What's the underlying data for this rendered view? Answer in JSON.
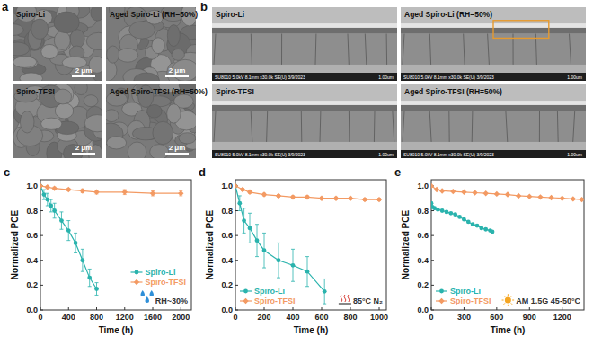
{
  "panel_a": {
    "label": "a",
    "images": [
      {
        "label": "Spiro-Li",
        "scale_bar": "2 μm"
      },
      {
        "label": "Aged Spiro-Li (RH=50%)",
        "scale_bar": "2 μm"
      },
      {
        "label": "Spiro-TFSI",
        "scale_bar": "2 μm"
      },
      {
        "label": "Aged Spiro-TFSI (RH=50%)",
        "scale_bar": "2 μm"
      }
    ]
  },
  "panel_b": {
    "label": "b",
    "images": [
      {
        "label": "Spiro-Li",
        "footer": "SU8010 5.0kV 8.1mm x30.0k SE(U) 3/9/2023",
        "scale": "1.00um",
        "highlight": false
      },
      {
        "label": "Aged Spiro-Li (RH=50%)",
        "footer": "SU8010 5.0kV 8.1mm x30.0k SE(U) 3/9/2023",
        "scale": "1.00um",
        "highlight": true
      },
      {
        "label": "Spiro-TFSI",
        "footer": "SU8010 5.0kV 8.1mm x30.0k SE(U) 3/9/2023",
        "scale": "1.00um",
        "highlight": false
      },
      {
        "label": "Aged Spiro-TFSI (RH=50%)",
        "footer": "SU8010 5.0kV 8.1mm x30.0k SE(U) 3/9/2023",
        "scale": "1.00um",
        "highlight": false
      }
    ]
  },
  "chart_data": [
    {
      "type": "line",
      "title": "c",
      "xlabel": "Time (h)",
      "ylabel": "Normalized PCE",
      "annotation": "RH~30%",
      "xlim": [
        0,
        2150
      ],
      "xticks": [
        0,
        400,
        800,
        1200,
        1600,
        2000
      ],
      "ylim": [
        0,
        1.05
      ],
      "yticks": [
        {
          "value": 0,
          "label": "0.0"
        },
        0.2,
        0.4,
        0.6,
        0.8,
        {
          "value": 1,
          "label": "1.0"
        }
      ],
      "grid": false,
      "legend": "lower right",
      "series": [
        {
          "name": "Spiro-Li",
          "color": "#2ab3ad",
          "marker": "circle",
          "line_style": "solid",
          "x": [
            0,
            50,
            100,
            150,
            200,
            300,
            400,
            500,
            600,
            700,
            800
          ],
          "values": [
            1.0,
            0.93,
            0.89,
            0.84,
            0.8,
            0.72,
            0.64,
            0.54,
            0.4,
            0.26,
            0.17
          ],
          "errors": [
            0,
            0.04,
            0.05,
            0.05,
            0.06,
            0.07,
            0.08,
            0.08,
            0.09,
            0.07,
            0.05
          ]
        },
        {
          "name": "Spiro-TFSI",
          "color": "#f39a63",
          "marker": "diamond",
          "line_style": "solid",
          "x": [
            0,
            100,
            200,
            400,
            600,
            800,
            1200,
            1600,
            2000
          ],
          "values": [
            1.0,
            0.99,
            0.98,
            0.97,
            0.96,
            0.95,
            0.95,
            0.94,
            0.94
          ],
          "errors": [
            0,
            0.01,
            0.01,
            0.01,
            0.015,
            0.015,
            0.02,
            0.02,
            0.02
          ]
        }
      ]
    },
    {
      "type": "line",
      "title": "d",
      "xlabel": "Time (h)",
      "ylabel": "Normalized PCE",
      "annotation": "85°C N₂",
      "xlim": [
        0,
        1050
      ],
      "xticks": [
        0,
        200,
        400,
        600,
        800,
        1000
      ],
      "ylim": [
        0,
        1.05
      ],
      "yticks": [
        {
          "value": 0,
          "label": "0.0"
        },
        0.2,
        0.4,
        0.6,
        0.8,
        {
          "value": 1,
          "label": "1.0"
        }
      ],
      "grid": false,
      "legend": "lower left",
      "series": [
        {
          "name": "Spiro-Li",
          "color": "#2ab3ad",
          "marker": "circle",
          "line_style": "solid",
          "x": [
            0,
            30,
            60,
            100,
            150,
            200,
            300,
            400,
            500,
            620
          ],
          "values": [
            1.0,
            0.86,
            0.72,
            0.66,
            0.56,
            0.48,
            0.4,
            0.36,
            0.31,
            0.15
          ],
          "errors": [
            0,
            0.06,
            0.1,
            0.12,
            0.13,
            0.14,
            0.14,
            0.13,
            0.12,
            0.1
          ]
        },
        {
          "name": "Spiro-TFSI",
          "color": "#f39a63",
          "marker": "diamond",
          "line_style": "solid",
          "x": [
            0,
            50,
            100,
            200,
            300,
            400,
            500,
            600,
            700,
            800,
            900,
            1000
          ],
          "values": [
            1.0,
            0.97,
            0.95,
            0.93,
            0.92,
            0.91,
            0.91,
            0.9,
            0.9,
            0.9,
            0.89,
            0.89
          ],
          "errors": [
            0,
            0.01,
            0.01,
            0.01,
            0.01,
            0.01,
            0.01,
            0.01,
            0.01,
            0.01,
            0.01,
            0.01
          ]
        }
      ]
    },
    {
      "type": "line",
      "title": "e",
      "xlabel": "Time (h)",
      "ylabel": "Normalized PCE",
      "annotation": "AM 1.5G 45-50°C",
      "xlim": [
        0,
        1400
      ],
      "xticks": [
        0,
        300,
        600,
        900,
        1200
      ],
      "ylim": [
        0,
        1.05
      ],
      "yticks": [
        {
          "value": 0,
          "label": "0.0"
        },
        0.2,
        0.4,
        0.6,
        0.8,
        {
          "value": 1,
          "label": "1.0"
        }
      ],
      "grid": false,
      "legend": "lower left",
      "series": [
        {
          "name": "Spiro-Li",
          "color": "#2ab3ad",
          "marker": "circle",
          "line_style": "solid",
          "x": [
            0,
            10,
            30,
            60,
            100,
            140,
            180,
            220,
            260,
            300,
            340,
            380,
            420,
            460,
            500,
            540,
            560
          ],
          "values": [
            0.86,
            0.83,
            0.82,
            0.81,
            0.8,
            0.79,
            0.78,
            0.77,
            0.75,
            0.73,
            0.71,
            0.69,
            0.68,
            0.66,
            0.65,
            0.64,
            0.63
          ]
        },
        {
          "name": "Spiro-TFSI",
          "color": "#f39a63",
          "marker": "diamond",
          "line_style": "solid",
          "x": [
            0,
            50,
            100,
            200,
            300,
            400,
            500,
            600,
            700,
            800,
            900,
            1000,
            1100,
            1200,
            1300,
            1380
          ],
          "values": [
            1.0,
            0.97,
            0.96,
            0.955,
            0.95,
            0.945,
            0.94,
            0.935,
            0.93,
            0.92,
            0.915,
            0.91,
            0.905,
            0.9,
            0.895,
            0.89
          ]
        }
      ]
    }
  ]
}
